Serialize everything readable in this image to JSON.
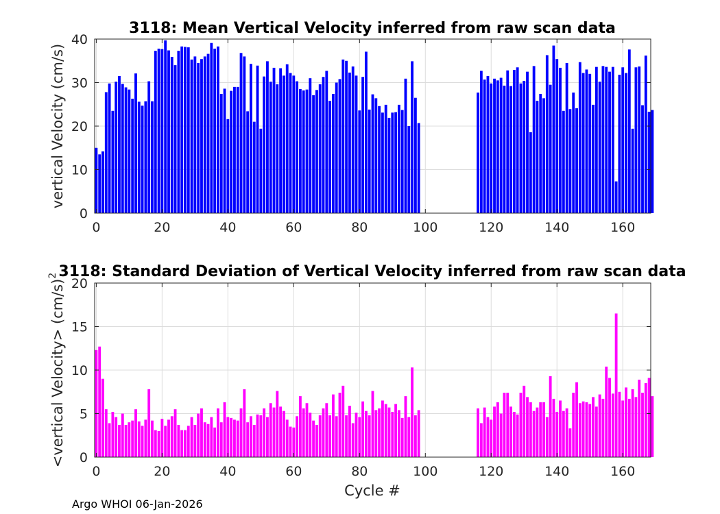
{
  "footer": "Argo WHOI 06-Jan-2026",
  "chart_data": [
    {
      "type": "bar",
      "title": "3118: Mean Vertical Velocity inferred from raw scan data",
      "xlabel": "",
      "ylabel": "vertical Velocity (cm/s)",
      "xlim": [
        -0.5,
        168.5
      ],
      "ylim": [
        0,
        40
      ],
      "xticks": [
        0,
        20,
        40,
        60,
        80,
        100,
        120,
        140,
        160
      ],
      "yticks": [
        0,
        10,
        20,
        30,
        40
      ],
      "color": "#0000ff",
      "grid": true,
      "x_start": 0,
      "values": [
        15.0,
        13.5,
        14.2,
        27.8,
        29.8,
        23.5,
        30.2,
        31.5,
        29.7,
        28.9,
        28.4,
        26.3,
        32.1,
        25.6,
        24.7,
        25.7,
        30.3,
        25.7,
        37.3,
        37.8,
        37.7,
        39.7,
        37.4,
        35.9,
        34.0,
        37.3,
        38.3,
        38.2,
        38.1,
        35.3,
        36.0,
        34.5,
        35.4,
        36.0,
        36.6,
        39.1,
        37.8,
        38.3,
        27.4,
        28.6,
        21.6,
        28.1,
        29.0,
        29.0,
        36.8,
        36.0,
        23.4,
        34.3,
        21.0,
        33.9,
        19.4,
        31.4,
        34.9,
        30.2,
        33.4,
        29.6,
        33.3,
        31.6,
        34.2,
        32.2,
        31.6,
        30.3,
        28.5,
        28.2,
        28.4,
        31.0,
        27.1,
        28.3,
        29.6,
        31.3,
        32.7,
        25.8,
        27.4,
        30.0,
        30.8,
        35.3,
        35.0,
        32.3,
        33.7,
        31.6,
        23.6,
        31.3,
        37.1,
        23.8,
        27.3,
        26.4,
        24.6,
        23.1,
        24.9,
        21.9,
        23.1,
        23.2,
        24.9,
        23.7,
        30.9,
        20.0,
        34.9,
        26.5,
        20.7,
        null,
        null,
        null,
        null,
        null,
        null,
        null,
        null,
        null,
        null,
        null,
        null,
        null,
        null,
        null,
        null,
        null,
        27.7,
        32.7,
        30.7,
        31.5,
        29.8,
        30.9,
        30.5,
        31.1,
        29.3,
        32.8,
        29.2,
        32.9,
        33.5,
        29.8,
        30.4,
        32.5,
        18.6,
        33.8,
        25.8,
        27.4,
        26.4,
        36.3,
        29.5,
        38.5,
        35.4,
        33.4,
        23.5,
        34.5,
        23.9,
        27.7,
        24.1,
        34.7,
        32.2,
        33.0,
        32.0,
        24.9,
        33.6,
        30.2,
        33.8,
        33.6,
        32.5,
        33.6,
        7.3,
        31.8,
        33.5,
        32.2,
        37.6,
        19.4,
        33.5,
        33.7,
        24.8,
        36.2,
        23.3,
        23.7
      ]
    },
    {
      "type": "bar",
      "title": "3118: Standard Deviation of Vertical Velocity inferred from raw scan data",
      "xlabel": "Cycle #",
      "ylabel": "<vertical Velocity> (cm/s)",
      "ylabel_superscript": "2",
      "xlim": [
        -0.5,
        168.5
      ],
      "ylim": [
        0,
        20
      ],
      "xticks": [
        0,
        20,
        40,
        60,
        80,
        100,
        120,
        140,
        160
      ],
      "yticks": [
        0,
        5,
        10,
        15,
        20
      ],
      "color": "#ff00ff",
      "grid": true,
      "x_start": 0,
      "values": [
        12.3,
        12.7,
        9.0,
        5.5,
        3.9,
        5.2,
        4.6,
        3.7,
        5.0,
        3.7,
        4.0,
        4.2,
        5.5,
        4.1,
        3.6,
        4.3,
        7.8,
        4.2,
        3.1,
        3.0,
        4.4,
        3.6,
        4.3,
        4.7,
        5.5,
        3.7,
        3.1,
        3.1,
        3.6,
        4.6,
        3.7,
        5.0,
        5.6,
        4.0,
        3.8,
        4.6,
        3.4,
        5.6,
        4.0,
        6.3,
        4.6,
        4.5,
        4.3,
        4.2,
        5.6,
        7.8,
        4.0,
        4.7,
        3.7,
        4.9,
        4.8,
        5.6,
        4.6,
        6.2,
        5.7,
        7.6,
        5.8,
        5.3,
        4.3,
        3.5,
        3.4,
        4.7,
        7.0,
        5.6,
        6.2,
        5.1,
        4.2,
        3.7,
        4.8,
        5.6,
        6.2,
        4.8,
        7.2,
        4.7,
        7.4,
        8.2,
        4.8,
        5.9,
        3.9,
        5.1,
        4.6,
        6.4,
        5.3,
        4.8,
        7.6,
        5.4,
        5.6,
        6.5,
        6.1,
        5.7,
        5.2,
        6.1,
        5.4,
        4.5,
        7.0,
        4.6,
        10.3,
        4.8,
        5.4,
        null,
        null,
        null,
        null,
        null,
        null,
        null,
        null,
        null,
        null,
        null,
        null,
        null,
        null,
        null,
        null,
        null,
        5.6,
        3.9,
        5.7,
        4.6,
        4.3,
        5.8,
        6.3,
        5.0,
        7.4,
        7.4,
        5.8,
        5.2,
        4.9,
        7.4,
        8.2,
        6.9,
        6.3,
        5.3,
        5.7,
        6.3,
        6.3,
        4.6,
        9.3,
        6.7,
        5.2,
        6.5,
        5.3,
        5.6,
        3.3,
        7.4,
        8.6,
        6.2,
        6.4,
        6.3,
        6.1,
        6.9,
        5.8,
        7.2,
        6.7,
        10.4,
        9.1,
        7.3,
        16.5,
        7.5,
        6.5,
        8.0,
        6.7,
        7.8,
        6.9,
        8.9,
        7.4,
        8.5,
        9.1,
        7.0
      ]
    }
  ]
}
